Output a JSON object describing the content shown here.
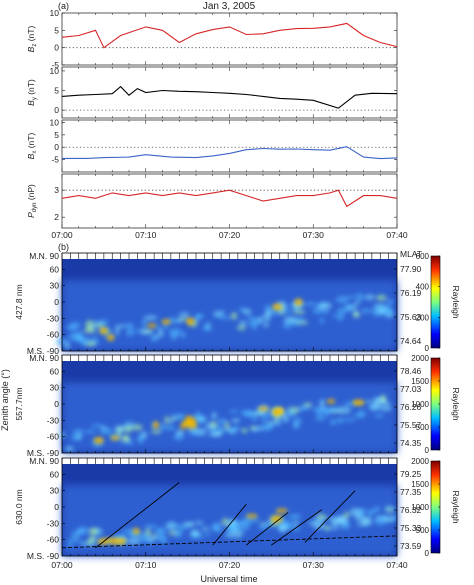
{
  "panel_a_label": "(a)",
  "panel_b_label": "(b)",
  "title": "Jan 3, 2005",
  "x_axis_label": "Universal time",
  "colors": {
    "red": "#d62728",
    "black": "#000000",
    "blue": "#3a64c8"
  },
  "chart_data": [
    {
      "type": "line",
      "ylabel": "B_z (nT)",
      "ylabel_main": "B",
      "ylabel_sub": "z",
      "ylabel_unit": " (nT)",
      "ylim": [
        -5,
        10
      ],
      "yticks": [
        "10",
        "5",
        "0",
        "-5"
      ],
      "reference_line": 0,
      "color": "red",
      "x": [
        "07:00",
        "07:02",
        "07:04",
        "07:05",
        "07:07",
        "07:10",
        "07:12",
        "07:14",
        "07:16",
        "07:18",
        "07:20",
        "07:22",
        "07:24",
        "07:26",
        "07:28",
        "07:30",
        "07:32",
        "07:34",
        "07:36",
        "07:38",
        "07:40"
      ],
      "values": [
        3,
        3.5,
        5,
        0,
        3.5,
        6,
        5,
        1.5,
        4,
        5.2,
        6,
        3.8,
        4,
        5,
        5.5,
        5.6,
        6,
        7,
        3.5,
        1.5,
        0.3
      ]
    },
    {
      "type": "line",
      "ylabel": "B_y (nT)",
      "ylabel_main": "B",
      "ylabel_sub": "y",
      "ylabel_unit": " (nT)",
      "ylim": [
        -2,
        11
      ],
      "yticks": [
        "10",
        "5",
        "0"
      ],
      "reference_line": 0,
      "color": "black",
      "x": [
        "07:00",
        "07:02",
        "07:04",
        "07:06",
        "07:07",
        "07:08",
        "07:09",
        "07:10",
        "07:12",
        "07:14",
        "07:16",
        "07:18",
        "07:20",
        "07:22",
        "07:24",
        "07:26",
        "07:28",
        "07:30",
        "07:33",
        "07:35",
        "07:37",
        "07:40"
      ],
      "values": [
        3.5,
        3.8,
        4,
        4.2,
        6,
        3.8,
        5.5,
        4.5,
        5,
        4.8,
        4.7,
        4.5,
        4.3,
        4,
        3.5,
        3,
        2.8,
        2.5,
        0.5,
        3.8,
        4.3,
        4.2
      ]
    },
    {
      "type": "line",
      "ylabel": "B_x (nT)",
      "ylabel_main": "B",
      "ylabel_sub": "x",
      "ylabel_unit": " (nT)",
      "ylim": [
        -10,
        11
      ],
      "yticks": [
        "10",
        "5",
        "0",
        "-5"
      ],
      "reference_line": 0,
      "color": "blue",
      "x": [
        "07:00",
        "07:03",
        "07:05",
        "07:08",
        "07:10",
        "07:13",
        "07:16",
        "07:18",
        "07:20",
        "07:22",
        "07:24",
        "07:26",
        "07:28",
        "07:30",
        "07:32",
        "07:34",
        "07:36",
        "07:38",
        "07:40"
      ],
      "values": [
        -4.5,
        -4.5,
        -4.2,
        -4,
        -3,
        -4,
        -4.2,
        -3.5,
        -2.5,
        -1,
        -0.5,
        -0.8,
        -0.7,
        -1,
        -1.2,
        0.2,
        -4,
        -4.6,
        -4.3
      ]
    },
    {
      "type": "line",
      "ylabel": "P_dyn (nP)",
      "ylabel_main": "P",
      "ylabel_sub": "dyn",
      "ylabel_unit": " (nP)",
      "ylim": [
        1.6,
        3.6
      ],
      "yticks": [
        "3",
        "2"
      ],
      "reference_line": 3,
      "color": "red",
      "x": [
        "07:00",
        "07:02",
        "07:04",
        "07:06",
        "07:08",
        "07:10",
        "07:12",
        "07:14",
        "07:16",
        "07:18",
        "07:20",
        "07:22",
        "07:24",
        "07:26",
        "07:28",
        "07:30",
        "07:32",
        "07:33",
        "07:34",
        "07:35",
        "07:36",
        "07:38",
        "07:40"
      ],
      "values": [
        2.7,
        2.8,
        2.7,
        2.9,
        2.8,
        2.9,
        2.8,
        2.9,
        2.8,
        2.9,
        3.0,
        2.8,
        2.6,
        2.7,
        2.8,
        2.8,
        2.9,
        3.0,
        2.4,
        2.6,
        2.8,
        2.8,
        2.7
      ]
    },
    {
      "type": "heatmap",
      "wavelength_label": "427.8 nm",
      "y_top_label": "M.N. 90",
      "y_bottom_label": "M.S. -90",
      "yticks": [
        "60",
        "30",
        "0",
        "-30",
        "-60"
      ],
      "mlat_header": "MLAT",
      "mlat_labels": [
        "77.90",
        "76.19",
        "75.63",
        "74.64"
      ],
      "colorbar_ticks": [
        "600",
        "400",
        "200",
        "0"
      ],
      "colorbar_label": "Rayleigh"
    },
    {
      "type": "heatmap",
      "wavelength_label": "557.7nm",
      "y_top_label": "M.N. 90",
      "y_bottom_label": "M.S. -90",
      "yticks": [
        "60",
        "30",
        "0",
        "-30",
        "-60"
      ],
      "mlat_labels": [
        "78.46",
        "77.03",
        "76.26",
        "75.57",
        "74.35"
      ],
      "colorbar_ticks": [
        "2000",
        "1500",
        "1000",
        "500",
        "0"
      ],
      "colorbar_label": "Rayleigh"
    },
    {
      "type": "heatmap",
      "wavelength_label": "630.0 nm",
      "y_top_label": "M.N. 90",
      "y_bottom_label": "M.S. -90",
      "yticks": [
        "60",
        "30",
        "0",
        "-30",
        "-60"
      ],
      "mlat_labels": [
        "79.25",
        "77.35",
        "76.32",
        "75.33",
        "73.59"
      ],
      "colorbar_ticks": [
        "2000",
        "1500",
        "1000",
        "500",
        "0"
      ],
      "colorbar_label": "Rayleigh"
    }
  ],
  "shared_ylabel": "Zenith angle (°)",
  "x_ticks": [
    "07:00",
    "07:10",
    "07:20",
    "07:30",
    "07:40"
  ]
}
